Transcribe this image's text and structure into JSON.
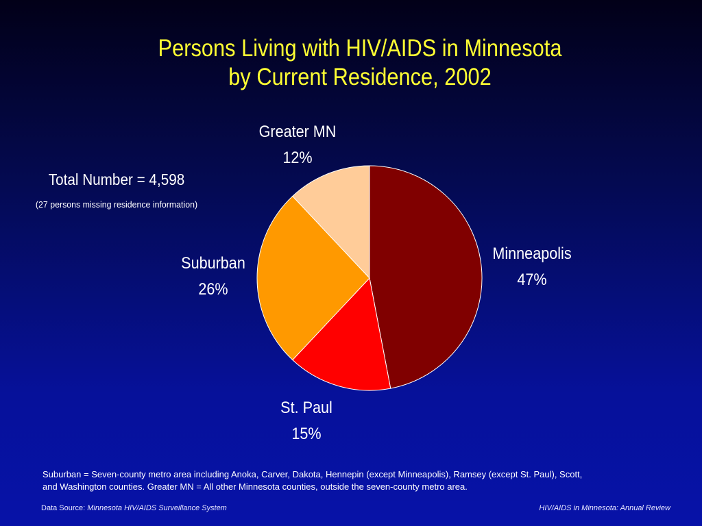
{
  "slide": {
    "title_line1": "Persons Living with HIV/AIDS in Minnesota",
    "title_line2": "by Current Residence, 2002",
    "total": "Total Number = 4,598",
    "missing": "(27 persons missing residence information)",
    "footnote_line1": "Suburban = Seven-county metro area including Anoka, Carver, Dakota, Hennepin (except Minneapolis), Ramsey (except St. Paul), Scott,",
    "footnote_line2": "and Washington counties.  Greater MN = All other Minnesota counties, outside the seven-county metro area.",
    "source_prefix": "Data Source:",
    "source_name": "Minnesota HIV/AIDS Surveillance System",
    "review": "HIV/AIDS in Minnesota: Annual Review"
  },
  "chart_data": {
    "type": "pie",
    "title": "Persons Living with HIV/AIDS in Minnesota by Current Residence, 2002",
    "slices": [
      {
        "label": "Minneapolis",
        "value": 47,
        "value_label": "47%",
        "color": "#800000"
      },
      {
        "label": "St. Paul",
        "value": 15,
        "value_label": "15%",
        "color": "#ff0000"
      },
      {
        "label": "Suburban",
        "value": 26,
        "value_label": "26%",
        "color": "#ff9900"
      },
      {
        "label": "Greater MN",
        "value": 12,
        "value_label": "12%",
        "color": "#ffcc99"
      }
    ],
    "start": "12 o'clock",
    "direction": "clockwise",
    "slice_border_color": "#ffffff"
  }
}
